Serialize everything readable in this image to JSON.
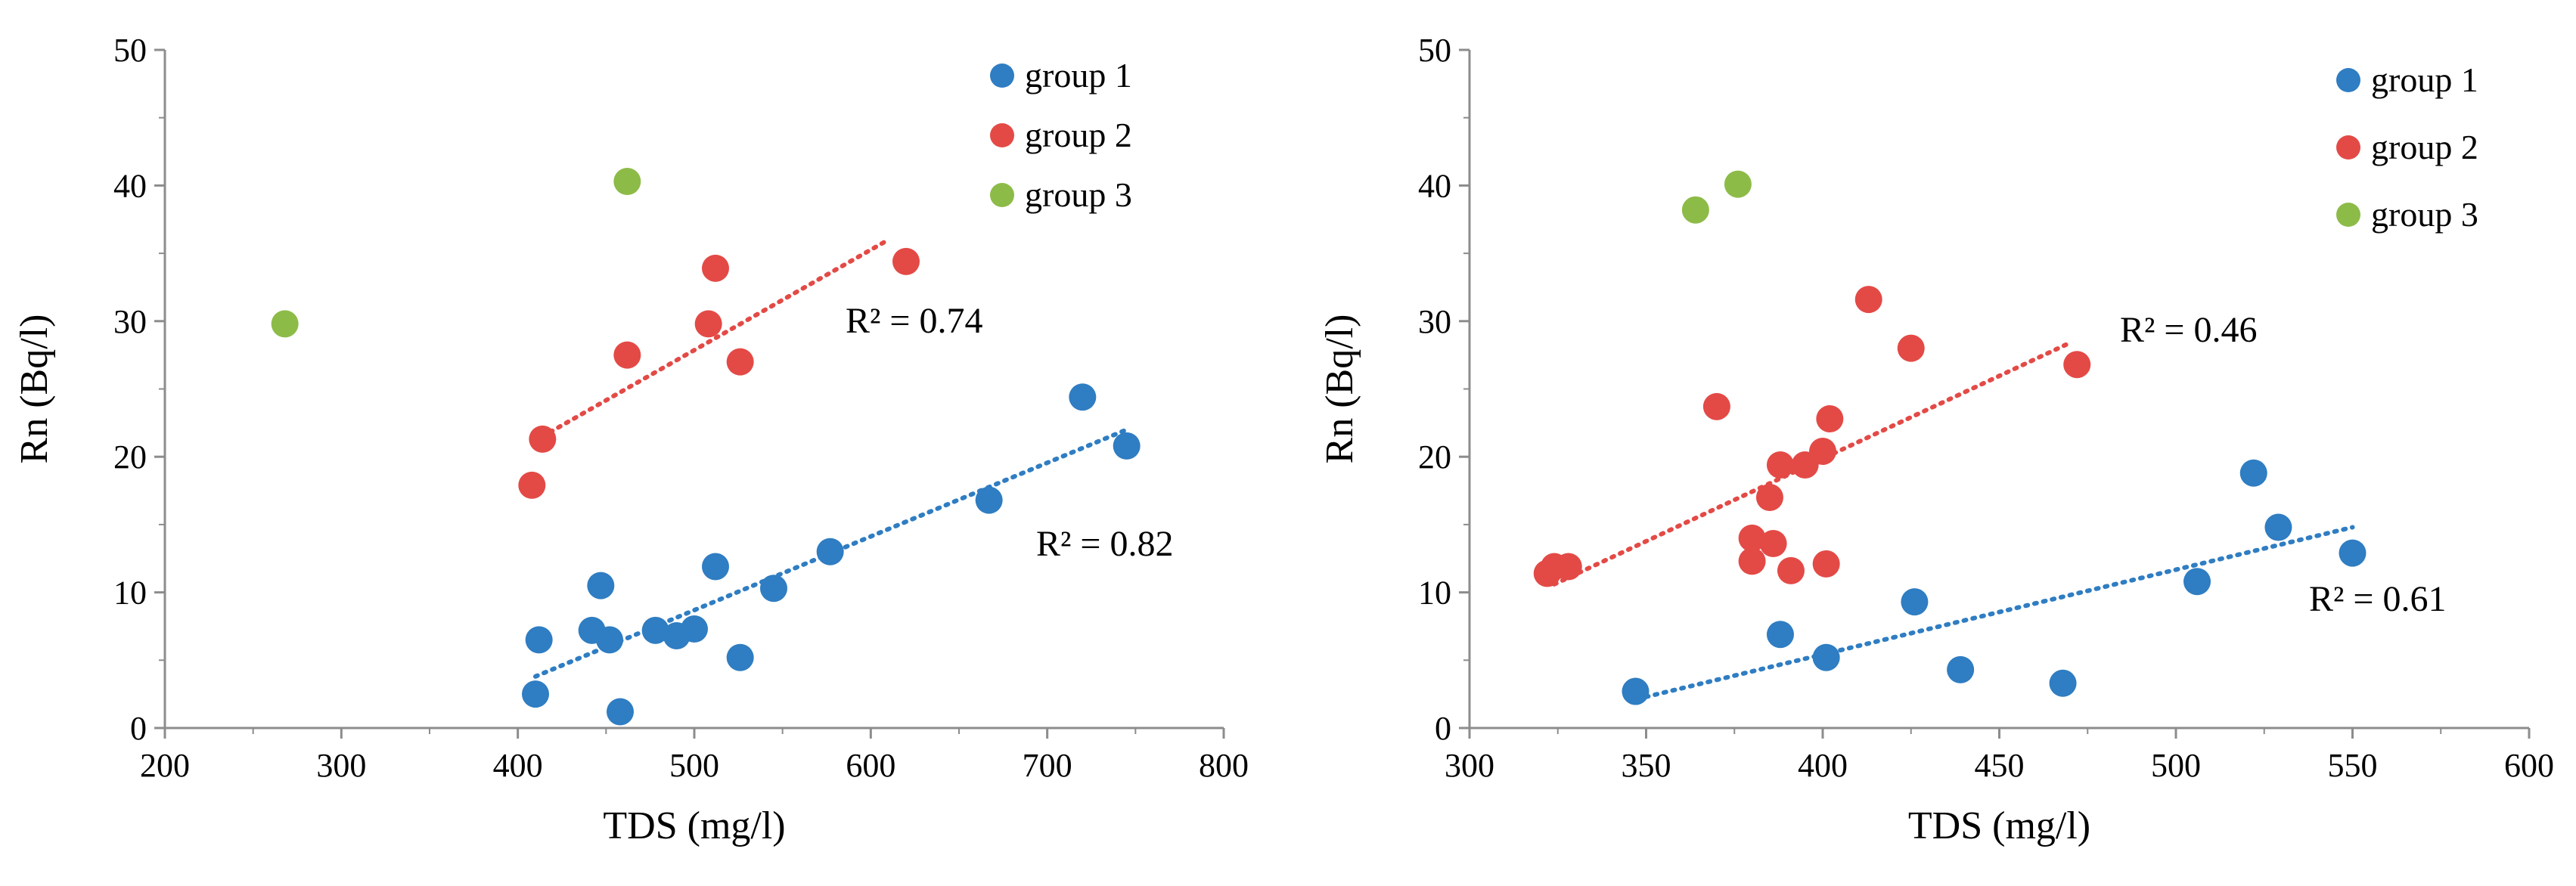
{
  "chart_data": [
    {
      "type": "scatter",
      "xlabel": "TDS (mg/l)",
      "ylabel": "Rn (Bq/l)",
      "xlim": [
        200,
        800
      ],
      "ylim": [
        0,
        50
      ],
      "xticks": [
        200,
        300,
        400,
        500,
        600,
        700,
        800
      ],
      "yticks": [
        0,
        10,
        20,
        30,
        40,
        50
      ],
      "grid": false,
      "legend_position": "top-right",
      "series": [
        {
          "name": "group 1",
          "color": "#2f7dc2",
          "points": [
            [
              410,
              2.5
            ],
            [
              412,
              6.5
            ],
            [
              442,
              7.2
            ],
            [
              447,
              10.5
            ],
            [
              452,
              6.5
            ],
            [
              458,
              1.2
            ],
            [
              478,
              7.2
            ],
            [
              490,
              6.8
            ],
            [
              500,
              7.3
            ],
            [
              512,
              11.9
            ],
            [
              526,
              5.2
            ],
            [
              545,
              10.3
            ],
            [
              577,
              13.0
            ],
            [
              667,
              16.8
            ],
            [
              720,
              24.4
            ],
            [
              745,
              20.8
            ]
          ],
          "trendline": {
            "x": [
              410,
              745
            ],
            "y": [
              3.8,
              22.0
            ],
            "r2_label": "R² = 0.82"
          }
        },
        {
          "name": "group 2",
          "color": "#e34a46",
          "points": [
            [
              408,
              17.9
            ],
            [
              414,
              21.3
            ],
            [
              462,
              27.5
            ],
            [
              508,
              29.8
            ],
            [
              512,
              33.9
            ],
            [
              526,
              27.0
            ],
            [
              620,
              34.4
            ]
          ],
          "trendline": {
            "x": [
              414,
              610
            ],
            "y": [
              21.5,
              36.0
            ],
            "r2_label": "R² = 0.74"
          }
        },
        {
          "name": "group 3",
          "color": "#8dbb48",
          "points": [
            [
              268,
              29.8
            ],
            [
              462,
              40.3
            ]
          ]
        }
      ]
    },
    {
      "type": "scatter",
      "xlabel": "TDS (mg/l)",
      "ylabel": "Rn (Bq/l)",
      "xlim": [
        300,
        600
      ],
      "ylim": [
        0,
        50
      ],
      "xticks": [
        300,
        350,
        400,
        450,
        500,
        550,
        600
      ],
      "yticks": [
        0,
        10,
        20,
        30,
        40,
        50
      ],
      "grid": false,
      "legend_position": "top-right",
      "series": [
        {
          "name": "group 1",
          "color": "#2f7dc2",
          "points": [
            [
              347,
              2.7
            ],
            [
              388,
              6.9
            ],
            [
              401,
              5.2
            ],
            [
              426,
              9.3
            ],
            [
              439,
              4.3
            ],
            [
              468,
              3.3
            ],
            [
              506,
              10.8
            ],
            [
              522,
              18.8
            ],
            [
              529,
              14.8
            ],
            [
              550,
              12.9
            ]
          ],
          "trendline": {
            "x": [
              350,
              550
            ],
            "y": [
              2.3,
              14.8
            ],
            "r2_label": "R² = 0.61"
          }
        },
        {
          "name": "group 2",
          "color": "#e34a46",
          "points": [
            [
              322,
              11.4
            ],
            [
              324,
              11.9
            ],
            [
              328,
              11.9
            ],
            [
              370,
              23.7
            ],
            [
              380,
              14.0
            ],
            [
              380,
              12.3
            ],
            [
              385,
              17.0
            ],
            [
              386,
              13.6
            ],
            [
              388,
              19.4
            ],
            [
              391,
              11.6
            ],
            [
              395,
              19.4
            ],
            [
              400,
              20.4
            ],
            [
              401,
              12.1
            ],
            [
              402,
              22.8
            ],
            [
              413,
              31.6
            ],
            [
              425,
              28.0
            ],
            [
              472,
              26.8
            ]
          ],
          "trendline": {
            "x": [
              324,
              470
            ],
            "y": [
              10.6,
              28.4
            ],
            "r2_label": "R² = 0.46"
          }
        },
        {
          "name": "group 3",
          "color": "#8dbb48",
          "points": [
            [
              364,
              38.2
            ],
            [
              376,
              40.1
            ]
          ]
        }
      ]
    }
  ]
}
